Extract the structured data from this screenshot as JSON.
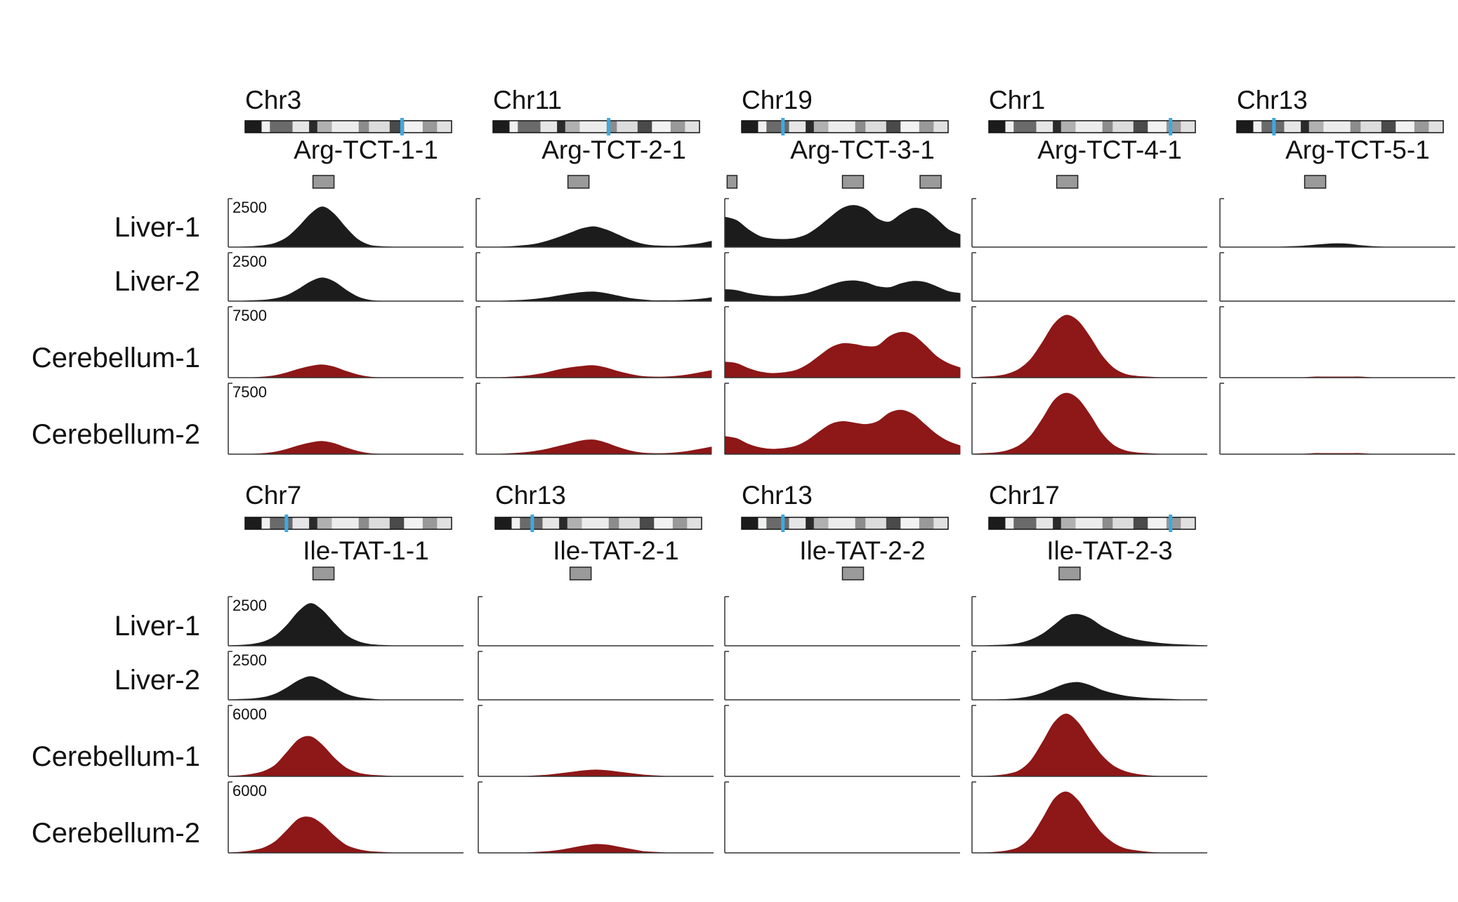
{
  "colors": {
    "liver": "#1c1c1c",
    "cerebellum": "#8e1717",
    "marker": "#3fa9e0",
    "gene_box": "#9a9a9a"
  },
  "groups": [
    {
      "rows": [
        {
          "name": "Liver-1",
          "tissue": "liver",
          "scale_label": "2500"
        },
        {
          "name": "Liver-2",
          "tissue": "liver",
          "scale_label": "2500"
        },
        {
          "name": "Cerebellum-1",
          "tissue": "cerebellum",
          "scale_label": "7500"
        },
        {
          "name": "Cerebellum-2",
          "tissue": "cerebellum",
          "scale_label": "7500"
        }
      ],
      "loci": [
        {
          "chromosome": "Chr3",
          "gene": "Arg-TCT-1-1",
          "marker_position": 0.76
        },
        {
          "chromosome": "Chr11",
          "gene": "Arg-TCT-2-1",
          "marker_position": 0.56
        },
        {
          "chromosome": "Chr19",
          "gene": "Arg-TCT-3-1",
          "marker_position": 0.2
        },
        {
          "chromosome": "Chr1",
          "gene": "Arg-TCT-4-1",
          "marker_position": 0.88
        },
        {
          "chromosome": "Chr13",
          "gene": "Arg-TCT-5-1",
          "marker_position": 0.18
        }
      ]
    },
    {
      "rows": [
        {
          "name": "Liver-1",
          "tissue": "liver",
          "scale_label": "2500"
        },
        {
          "name": "Liver-2",
          "tissue": "liver",
          "scale_label": "2500"
        },
        {
          "name": "Cerebellum-1",
          "tissue": "cerebellum",
          "scale_label": "6000"
        },
        {
          "name": "Cerebellum-2",
          "tissue": "cerebellum",
          "scale_label": "6000"
        }
      ],
      "loci": [
        {
          "chromosome": "Chr7",
          "gene": "Ile-TAT-1-1",
          "marker_position": 0.2
        },
        {
          "chromosome": "Chr13",
          "gene": "Ile-TAT-2-1",
          "marker_position": 0.18
        },
        {
          "chromosome": "Chr13",
          "gene": "Ile-TAT-2-2",
          "marker_position": 0.2
        },
        {
          "chromosome": "Chr17",
          "gene": "Ile-TAT-2-3",
          "marker_position": 0.88
        }
      ]
    }
  ],
  "chart_data": {
    "type": "area",
    "x": [
      0.0,
      0.05,
      0.1,
      0.15,
      0.2,
      0.25,
      0.3,
      0.35,
      0.4,
      0.45,
      0.5,
      0.55,
      0.6,
      0.65,
      0.7,
      0.75,
      0.8,
      0.85,
      0.9,
      0.95,
      1.0
    ],
    "panels": [
      {
        "group": 0,
        "locus": "Arg-TCT-1-1",
        "sample": "Liver-1",
        "values": [
          0,
          0,
          0.01,
          0.03,
          0.08,
          0.2,
          0.42,
          0.68,
          0.83,
          0.68,
          0.4,
          0.16,
          0.04,
          0.01,
          0,
          0,
          0,
          0,
          0,
          0,
          0
        ]
      },
      {
        "group": 0,
        "locus": "Arg-TCT-1-1",
        "sample": "Liver-2",
        "values": [
          0,
          0,
          0.01,
          0.02,
          0.05,
          0.12,
          0.25,
          0.4,
          0.48,
          0.4,
          0.23,
          0.09,
          0.02,
          0,
          0,
          0,
          0,
          0,
          0,
          0,
          0
        ]
      },
      {
        "group": 0,
        "locus": "Arg-TCT-1-1",
        "sample": "Cerebellum-1",
        "values": [
          0,
          0,
          0,
          0.01,
          0.03,
          0.07,
          0.12,
          0.16,
          0.18,
          0.15,
          0.09,
          0.04,
          0.01,
          0,
          0,
          0,
          0,
          0,
          0,
          0,
          0
        ]
      },
      {
        "group": 0,
        "locus": "Arg-TCT-1-1",
        "sample": "Cerebellum-2",
        "values": [
          0,
          0,
          0,
          0.01,
          0.03,
          0.07,
          0.12,
          0.16,
          0.18,
          0.15,
          0.09,
          0.04,
          0.01,
          0,
          0,
          0,
          0,
          0,
          0,
          0,
          0
        ]
      },
      {
        "group": 0,
        "locus": "Arg-TCT-2-1",
        "sample": "Liver-1",
        "values": [
          0,
          0,
          0,
          0.01,
          0.03,
          0.06,
          0.12,
          0.2,
          0.29,
          0.38,
          0.42,
          0.36,
          0.26,
          0.15,
          0.07,
          0.03,
          0.02,
          0.02,
          0.04,
          0.07,
          0.12
        ]
      },
      {
        "group": 0,
        "locus": "Arg-TCT-2-1",
        "sample": "Liver-2",
        "values": [
          0,
          0,
          0,
          0.01,
          0.02,
          0.04,
          0.07,
          0.11,
          0.15,
          0.18,
          0.19,
          0.16,
          0.11,
          0.06,
          0.03,
          0.01,
          0.01,
          0.01,
          0.02,
          0.04,
          0.07
        ]
      },
      {
        "group": 0,
        "locus": "Arg-TCT-2-1",
        "sample": "Cerebellum-1",
        "values": [
          0,
          0,
          0,
          0.01,
          0.02,
          0.04,
          0.07,
          0.11,
          0.14,
          0.16,
          0.17,
          0.14,
          0.09,
          0.05,
          0.02,
          0.01,
          0.01,
          0.02,
          0.04,
          0.07,
          0.1
        ]
      },
      {
        "group": 0,
        "locus": "Arg-TCT-2-1",
        "sample": "Cerebellum-2",
        "values": [
          0,
          0,
          0,
          0.01,
          0.02,
          0.04,
          0.07,
          0.11,
          0.15,
          0.19,
          0.2,
          0.16,
          0.1,
          0.05,
          0.02,
          0.01,
          0.01,
          0.02,
          0.04,
          0.07,
          0.1
        ]
      },
      {
        "group": 0,
        "locus": "Arg-TCT-3-1",
        "sample": "Liver-1",
        "values": [
          0.62,
          0.55,
          0.36,
          0.22,
          0.17,
          0.16,
          0.18,
          0.26,
          0.42,
          0.62,
          0.8,
          0.86,
          0.78,
          0.58,
          0.52,
          0.68,
          0.8,
          0.76,
          0.58,
          0.36,
          0.26
        ]
      },
      {
        "group": 0,
        "locus": "Arg-TCT-3-1",
        "sample": "Liver-2",
        "values": [
          0.24,
          0.22,
          0.16,
          0.12,
          0.1,
          0.1,
          0.12,
          0.16,
          0.24,
          0.33,
          0.4,
          0.42,
          0.38,
          0.3,
          0.28,
          0.36,
          0.41,
          0.39,
          0.3,
          0.2,
          0.16
        ]
      },
      {
        "group": 0,
        "locus": "Arg-TCT-3-1",
        "sample": "Cerebellum-1",
        "values": [
          0.22,
          0.2,
          0.13,
          0.08,
          0.06,
          0.07,
          0.1,
          0.18,
          0.3,
          0.42,
          0.48,
          0.47,
          0.44,
          0.45,
          0.58,
          0.64,
          0.6,
          0.46,
          0.3,
          0.2,
          0.14
        ]
      },
      {
        "group": 0,
        "locus": "Arg-TCT-3-1",
        "sample": "Cerebellum-2",
        "values": [
          0.25,
          0.22,
          0.14,
          0.09,
          0.07,
          0.08,
          0.11,
          0.19,
          0.31,
          0.42,
          0.46,
          0.44,
          0.42,
          0.46,
          0.58,
          0.62,
          0.56,
          0.42,
          0.28,
          0.18,
          0.12
        ]
      },
      {
        "group": 0,
        "locus": "Arg-TCT-4-1",
        "sample": "Liver-1",
        "values": [
          0,
          0,
          0,
          0,
          0,
          0,
          0,
          0,
          0,
          0,
          0,
          0,
          0,
          0,
          0,
          0,
          0,
          0,
          0,
          0,
          0
        ]
      },
      {
        "group": 0,
        "locus": "Arg-TCT-4-1",
        "sample": "Liver-2",
        "values": [
          0,
          0,
          0,
          0,
          0,
          0,
          0,
          0,
          0,
          0,
          0,
          0,
          0,
          0,
          0,
          0,
          0,
          0,
          0,
          0,
          0
        ]
      },
      {
        "group": 0,
        "locus": "Arg-TCT-4-1",
        "sample": "Cerebellum-1",
        "values": [
          0,
          0.01,
          0.02,
          0.05,
          0.12,
          0.26,
          0.5,
          0.76,
          0.88,
          0.8,
          0.58,
          0.32,
          0.14,
          0.05,
          0.02,
          0.01,
          0,
          0,
          0,
          0,
          0
        ]
      },
      {
        "group": 0,
        "locus": "Arg-TCT-4-1",
        "sample": "Cerebellum-2",
        "values": [
          0,
          0.01,
          0.02,
          0.05,
          0.12,
          0.26,
          0.5,
          0.76,
          0.86,
          0.78,
          0.56,
          0.3,
          0.13,
          0.05,
          0.02,
          0.01,
          0,
          0,
          0,
          0,
          0
        ]
      },
      {
        "group": 0,
        "locus": "Arg-TCT-5-1",
        "sample": "Liver-1",
        "values": [
          0,
          0,
          0,
          0,
          0,
          0,
          0.01,
          0.02,
          0.04,
          0.06,
          0.07,
          0.06,
          0.03,
          0.01,
          0,
          0,
          0,
          0,
          0,
          0,
          0
        ]
      },
      {
        "group": 0,
        "locus": "Arg-TCT-5-1",
        "sample": "Liver-2",
        "values": [
          0,
          0,
          0,
          0,
          0,
          0,
          0,
          0,
          0,
          0,
          0,
          0,
          0,
          0,
          0,
          0,
          0,
          0,
          0,
          0,
          0
        ]
      },
      {
        "group": 0,
        "locus": "Arg-TCT-5-1",
        "sample": "Cerebellum-1",
        "values": [
          0,
          0,
          0,
          0,
          0,
          0,
          0,
          0,
          0.01,
          0.01,
          0.01,
          0.01,
          0.01,
          0,
          0,
          0,
          0,
          0,
          0,
          0,
          0
        ]
      },
      {
        "group": 0,
        "locus": "Arg-TCT-5-1",
        "sample": "Cerebellum-2",
        "values": [
          0,
          0,
          0,
          0,
          0,
          0,
          0,
          0,
          0.01,
          0.01,
          0.01,
          0.01,
          0.01,
          0,
          0,
          0,
          0,
          0,
          0,
          0,
          0
        ]
      },
      {
        "group": 1,
        "locus": "Ile-TAT-1-1",
        "sample": "Liver-1",
        "values": [
          0,
          0.01,
          0.03,
          0.08,
          0.2,
          0.42,
          0.7,
          0.86,
          0.72,
          0.46,
          0.22,
          0.09,
          0.03,
          0.01,
          0,
          0,
          0,
          0,
          0,
          0,
          0
        ]
      },
      {
        "group": 1,
        "locus": "Ile-TAT-1-1",
        "sample": "Liver-2",
        "values": [
          0,
          0.01,
          0.02,
          0.05,
          0.12,
          0.25,
          0.4,
          0.48,
          0.4,
          0.25,
          0.12,
          0.05,
          0.02,
          0,
          0,
          0,
          0,
          0,
          0,
          0,
          0
        ]
      },
      {
        "group": 1,
        "locus": "Ile-TAT-1-1",
        "sample": "Cerebellum-1",
        "values": [
          0,
          0.01,
          0.03,
          0.07,
          0.16,
          0.34,
          0.52,
          0.56,
          0.44,
          0.26,
          0.12,
          0.05,
          0.02,
          0.01,
          0,
          0,
          0,
          0,
          0,
          0,
          0
        ]
      },
      {
        "group": 1,
        "locus": "Ile-TAT-1-1",
        "sample": "Cerebellum-2",
        "values": [
          0,
          0.01,
          0.03,
          0.07,
          0.16,
          0.32,
          0.48,
          0.5,
          0.4,
          0.24,
          0.11,
          0.05,
          0.02,
          0.01,
          0,
          0,
          0,
          0,
          0,
          0,
          0
        ]
      },
      {
        "group": 1,
        "locus": "Ile-TAT-2-1",
        "sample": "Liver-1",
        "values": [
          0,
          0,
          0,
          0,
          0,
          0,
          0,
          0,
          0,
          0,
          0,
          0,
          0,
          0,
          0,
          0,
          0,
          0,
          0,
          0,
          0
        ]
      },
      {
        "group": 1,
        "locus": "Ile-TAT-2-1",
        "sample": "Liver-2",
        "values": [
          0,
          0,
          0,
          0,
          0,
          0,
          0,
          0,
          0,
          0,
          0,
          0,
          0,
          0,
          0,
          0,
          0,
          0,
          0,
          0,
          0
        ]
      },
      {
        "group": 1,
        "locus": "Ile-TAT-2-1",
        "sample": "Cerebellum-1",
        "values": [
          0,
          0,
          0,
          0,
          0,
          0.01,
          0.02,
          0.04,
          0.06,
          0.08,
          0.09,
          0.08,
          0.06,
          0.04,
          0.02,
          0.01,
          0,
          0,
          0,
          0,
          0
        ]
      },
      {
        "group": 1,
        "locus": "Ile-TAT-2-1",
        "sample": "Cerebellum-2",
        "values": [
          0,
          0,
          0,
          0,
          0,
          0.01,
          0.02,
          0.04,
          0.07,
          0.1,
          0.12,
          0.11,
          0.08,
          0.05,
          0.02,
          0.01,
          0,
          0,
          0,
          0,
          0
        ]
      },
      {
        "group": 1,
        "locus": "Ile-TAT-2-2",
        "sample": "Liver-1",
        "values": [
          0,
          0,
          0,
          0,
          0,
          0,
          0,
          0,
          0,
          0,
          0,
          0,
          0,
          0,
          0,
          0,
          0,
          0,
          0,
          0,
          0
        ]
      },
      {
        "group": 1,
        "locus": "Ile-TAT-2-2",
        "sample": "Liver-2",
        "values": [
          0,
          0,
          0,
          0,
          0,
          0,
          0,
          0,
          0,
          0,
          0,
          0,
          0,
          0,
          0,
          0,
          0,
          0,
          0,
          0,
          0
        ]
      },
      {
        "group": 1,
        "locus": "Ile-TAT-2-2",
        "sample": "Cerebellum-1",
        "values": [
          0,
          0,
          0,
          0,
          0,
          0,
          0,
          0,
          0,
          0,
          0,
          0,
          0,
          0,
          0,
          0,
          0,
          0,
          0,
          0,
          0
        ]
      },
      {
        "group": 1,
        "locus": "Ile-TAT-2-2",
        "sample": "Cerebellum-2",
        "values": [
          0,
          0,
          0,
          0,
          0,
          0,
          0,
          0,
          0,
          0,
          0,
          0,
          0,
          0,
          0,
          0,
          0,
          0,
          0,
          0,
          0
        ]
      },
      {
        "group": 1,
        "locus": "Ile-TAT-2-3",
        "sample": "Liver-1",
        "values": [
          0,
          0,
          0.01,
          0.02,
          0.05,
          0.12,
          0.24,
          0.42,
          0.6,
          0.64,
          0.56,
          0.4,
          0.28,
          0.18,
          0.12,
          0.08,
          0.05,
          0.03,
          0.02,
          0.01,
          0
        ]
      },
      {
        "group": 1,
        "locus": "Ile-TAT-2-3",
        "sample": "Liver-2",
        "values": [
          0,
          0,
          0,
          0.01,
          0.03,
          0.07,
          0.14,
          0.24,
          0.33,
          0.36,
          0.3,
          0.2,
          0.13,
          0.08,
          0.05,
          0.03,
          0.02,
          0.01,
          0,
          0,
          0
        ]
      },
      {
        "group": 1,
        "locus": "Ile-TAT-2-3",
        "sample": "Cerebellum-1",
        "values": [
          0,
          0,
          0.01,
          0.03,
          0.08,
          0.22,
          0.48,
          0.76,
          0.88,
          0.76,
          0.52,
          0.3,
          0.15,
          0.07,
          0.03,
          0.01,
          0,
          0,
          0,
          0,
          0
        ]
      },
      {
        "group": 1,
        "locus": "Ile-TAT-2-3",
        "sample": "Cerebellum-2",
        "values": [
          0,
          0,
          0.01,
          0.03,
          0.08,
          0.22,
          0.48,
          0.76,
          0.86,
          0.74,
          0.5,
          0.28,
          0.14,
          0.06,
          0.03,
          0.01,
          0,
          0,
          0,
          0,
          0
        ]
      }
    ]
  }
}
